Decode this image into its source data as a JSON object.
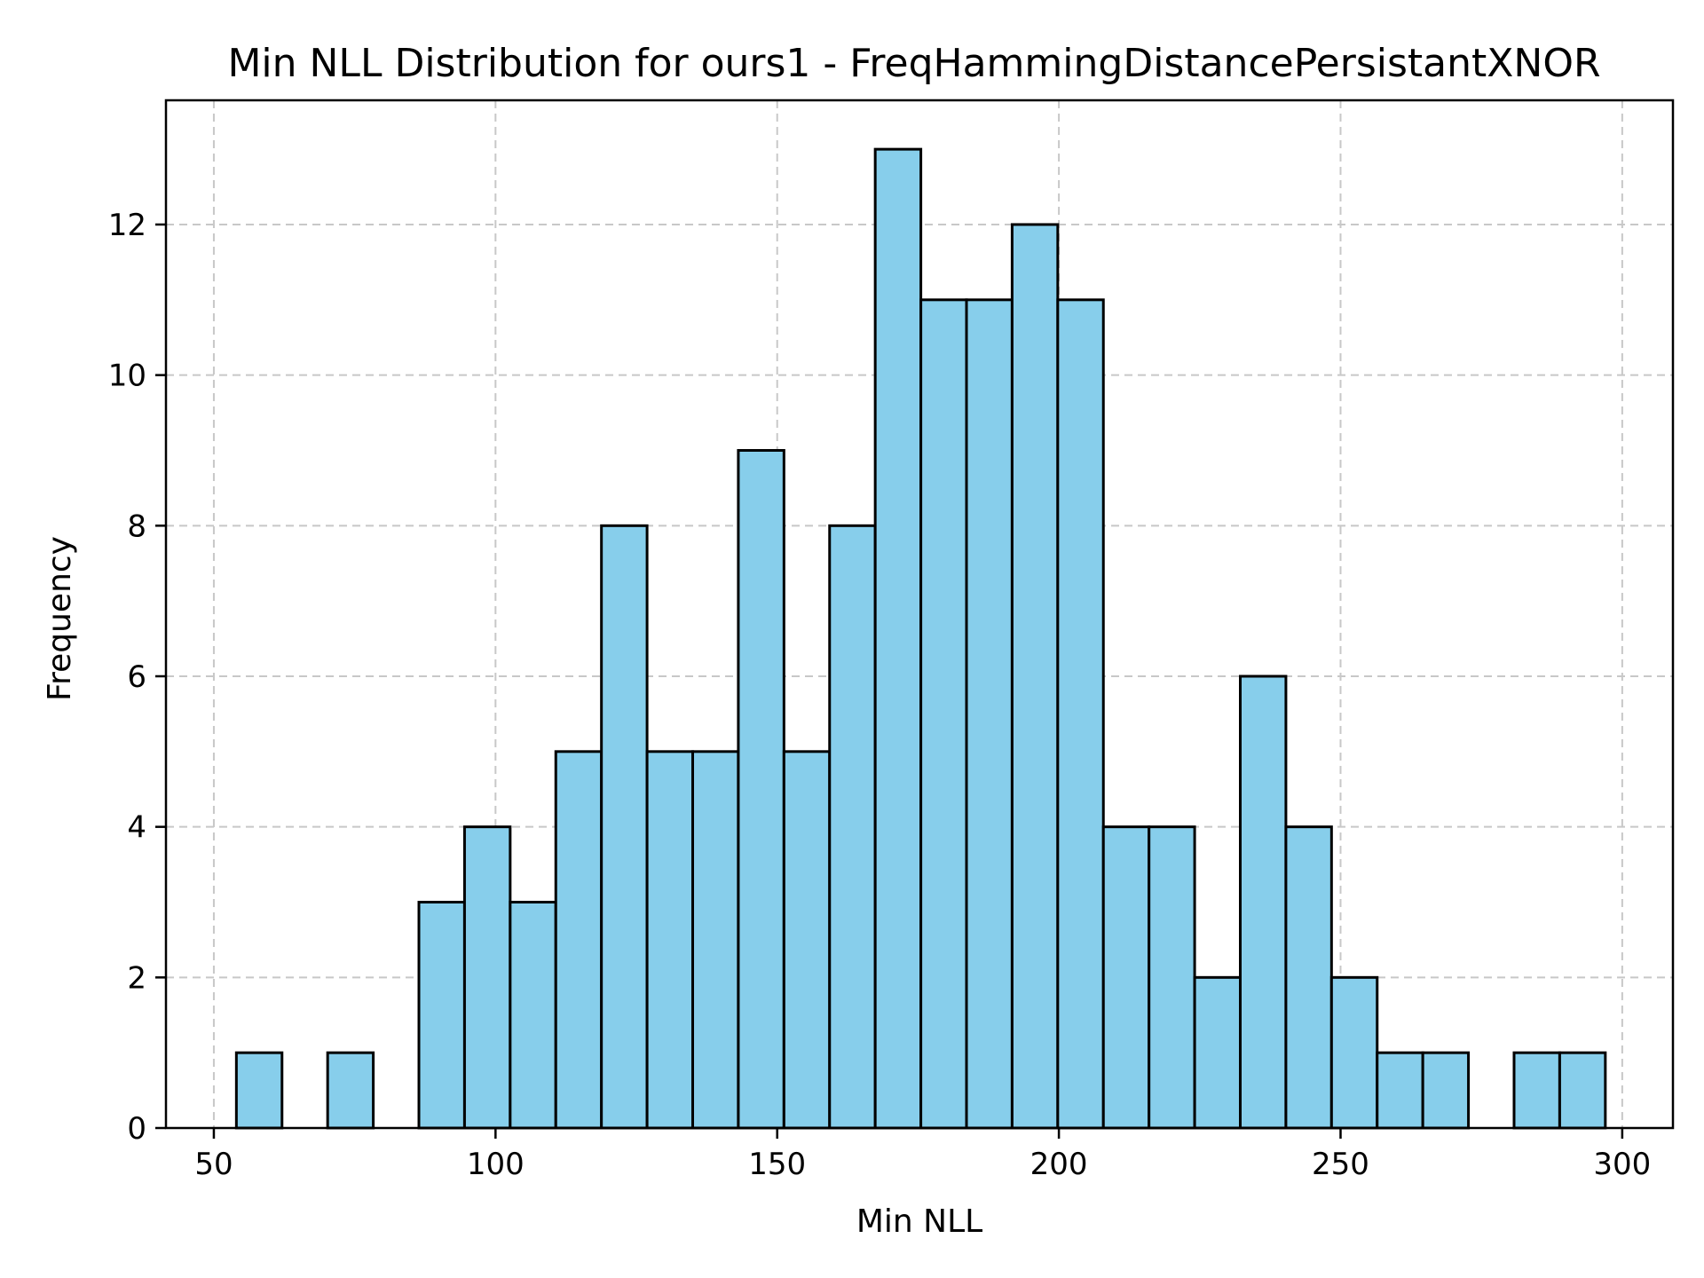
{
  "chart_data": {
    "type": "histogram",
    "title": "Min NLL Distribution for ours1 - FreqHammingDistancePersistantXNOR",
    "xlabel": "Min NLL",
    "ylabel": "Frequency",
    "xlim": [
      41.5,
      309
    ],
    "ylim": [
      0,
      13.65
    ],
    "xticks": [
      50,
      100,
      150,
      200,
      250,
      300
    ],
    "yticks": [
      0,
      2,
      4,
      6,
      8,
      10,
      12
    ],
    "grid": true,
    "bar_color": "#87CEEB",
    "edge_color": "#000000",
    "bin_start": 54,
    "bin_width": 8.1,
    "counts": [
      1,
      0,
      1,
      0,
      3,
      4,
      3,
      5,
      8,
      5,
      5,
      9,
      5,
      8,
      13,
      11,
      11,
      12,
      11,
      4,
      4,
      2,
      6,
      4,
      2,
      1,
      1,
      0,
      1,
      1
    ]
  }
}
